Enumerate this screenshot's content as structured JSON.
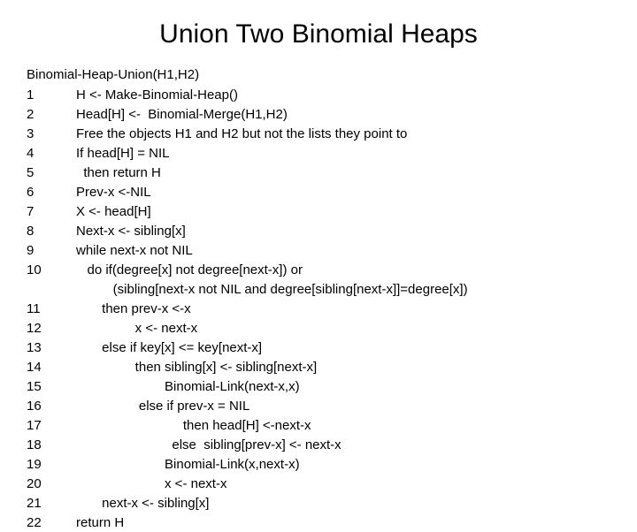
{
  "title": "Union Two Binomial Heaps",
  "func_header": "Binomial-Heap-Union(H1,H2)",
  "lines": [
    {
      "num": "1",
      "text": "H <- Make-Binomial-Heap()"
    },
    {
      "num": "2",
      "text": "Head[H] <-  Binomial-Merge(H1,H2)"
    },
    {
      "num": "3",
      "text": "Free the objects H1 and H2 but not the lists they point to"
    },
    {
      "num": "4",
      "text": "If head[H] = NIL"
    },
    {
      "num": "5",
      "text": "  then return H"
    },
    {
      "num": "6",
      "text": "Prev-x <-NIL"
    },
    {
      "num": "7",
      "text": "X <- head[H]"
    },
    {
      "num": "8",
      "text": "Next-x <- sibling[x]"
    },
    {
      "num": "9",
      "text": "while next-x not NIL"
    },
    {
      "num": "10",
      "text": "   do if(degree[x] not degree[next-x]) or"
    },
    {
      "num": "",
      "text": "          (sibling[next-x not NIL and degree[sibling[next-x]]=degree[x])"
    },
    {
      "num": "11",
      "text": "       then prev-x <-x"
    },
    {
      "num": "12",
      "text": "                x <- next-x"
    },
    {
      "num": "13",
      "text": "       else if key[x] <= key[next-x]"
    },
    {
      "num": "14",
      "text": "                then sibling[x] <- sibling[next-x]"
    },
    {
      "num": "15",
      "text": "                        Binomial-Link(next-x,x)"
    },
    {
      "num": "16",
      "text": "                 else if prev-x = NIL"
    },
    {
      "num": "17",
      "text": "                             then head[H] <-next-x"
    },
    {
      "num": "18",
      "text": "                          else  sibling[prev-x] <- next-x"
    },
    {
      "num": "19",
      "text": "                        Binomial-Link(x,next-x)"
    },
    {
      "num": "20",
      "text": "                        x <- next-x"
    },
    {
      "num": "21",
      "text": "       next-x <- sibling[x]"
    },
    {
      "num": "22",
      "text": "return H"
    }
  ],
  "colors": {
    "background": "#ffffff",
    "text": "#000000"
  },
  "typography": {
    "title_fontsize": 30,
    "body_fontsize": 15,
    "font_family": "Arial"
  }
}
